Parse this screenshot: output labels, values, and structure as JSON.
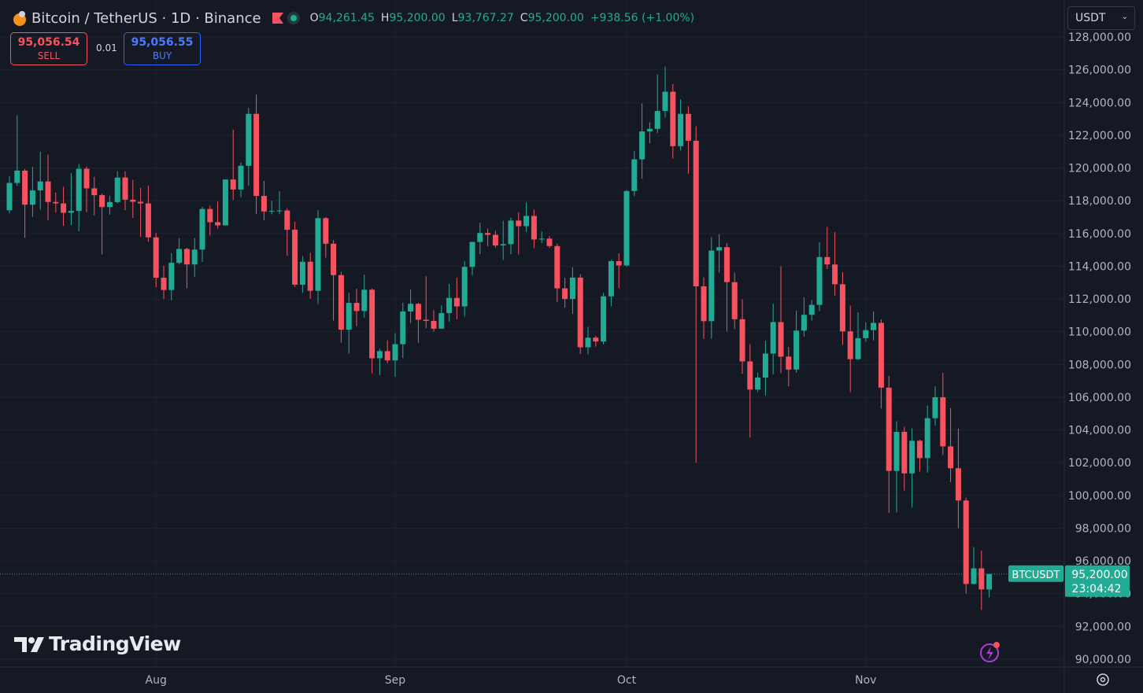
{
  "header": {
    "symbol": "Bitcoin / TetherUS · 1D · Binance",
    "ohlc": [
      {
        "key": "O",
        "value": "94,261.45"
      },
      {
        "key": "H",
        "value": "95,200.00"
      },
      {
        "key": "L",
        "value": "93,767.27"
      },
      {
        "key": "C",
        "value": "95,200.00"
      }
    ],
    "change": "+938.56 (+1.00%)"
  },
  "trade": {
    "sell_price": "95,056.54",
    "sell": "SELL",
    "quantity": "0.01",
    "buy_price": "95,056.55",
    "buy": "BUY"
  },
  "currency": "USDT",
  "logo": "TradingView",
  "chart_data": {
    "type": "candlestick",
    "categories": [
      null,
      null,
      null,
      null,
      null,
      null,
      null,
      null,
      null,
      null,
      null,
      null,
      null,
      null,
      null,
      null,
      null,
      null,
      null,
      "Aug",
      null,
      null,
      null,
      null,
      null,
      null,
      null,
      null,
      null,
      null,
      null,
      null,
      null,
      null,
      null,
      null,
      null,
      null,
      null,
      null,
      null,
      null,
      null,
      null,
      null,
      null,
      null,
      null,
      null,
      null,
      "Sep",
      null,
      null,
      null,
      null,
      null,
      null,
      null,
      null,
      null,
      null,
      null,
      null,
      null,
      null,
      null,
      null,
      null,
      null,
      null,
      null,
      null,
      null,
      null,
      null,
      null,
      null,
      null,
      null,
      null,
      "Oct",
      null,
      null,
      null,
      null,
      null,
      null,
      null,
      null,
      null,
      null,
      null,
      null,
      null,
      null,
      null,
      null,
      null,
      null,
      null,
      null,
      null,
      null,
      null,
      null,
      null,
      null,
      null,
      null,
      null,
      null,
      "Nov",
      null,
      null,
      null,
      null,
      null,
      null,
      null,
      null,
      null,
      null,
      null,
      null,
      null,
      null,
      null,
      null
    ],
    "open": [
      117420,
      119086,
      119841,
      117758,
      118630,
      119177,
      117924,
      117840,
      117265,
      117380,
      119954,
      118756,
      118340,
      117614,
      117919,
      119416,
      118062,
      117938,
      117837,
      115764,
      113297,
      112547,
      114208,
      115055,
      114108,
      115016,
      117496,
      116688,
      116498,
      119294,
      118686,
      120134,
      123307,
      118295,
      117342,
      117381,
      117405,
      116227,
      112872,
      114271,
      112500,
      116936,
      115374,
      113458,
      110124,
      111763,
      111262,
      112566,
      108377,
      108816,
      108246,
      109237,
      111240,
      111705,
      110730,
      110659,
      110187,
      111137,
      112065,
      111546,
      113960,
      115482,
      116029,
      115918,
      115268,
      115349,
      116788,
      116447,
      117073,
      115632,
      115685,
      115232,
      112650,
      111998,
      113307,
      109049,
      109635,
      109403,
      112163,
      114311,
      114048,
      118594,
      120529,
      122232,
      122391,
      123482,
      124658,
      121332,
      123306,
      121662,
      112774,
      110644,
      114958,
      115166,
      113028,
      110763,
      108186,
      106467,
      107198,
      108666,
      110588,
      108476,
      107688,
      110069,
      111033,
      111641,
      114559,
      114107,
      112898,
      110021,
      108322,
      109608,
      110098,
      110540,
      106583,
      101497,
      103885,
      101346,
      103340,
      102282,
      104719,
      105996,
      102997,
      101663,
      99692,
      94594,
      95549,
      94261.45
    ],
    "high": [
      119488,
      123218,
      119940,
      120063,
      120998,
      120820,
      118499,
      118856,
      119676,
      120247,
      120090,
      119450,
      118451,
      118297,
      119800,
      119800,
      119273,
      118792,
      118922,
      116052,
      114036,
      114800,
      115720,
      115127,
      115720,
      117631,
      117700,
      117944,
      119311,
      122335,
      120324,
      123667,
      124474,
      119216,
      117999,
      118575,
      117543,
      116725,
      114615,
      114821,
      117429,
      117000,
      115600,
      113657,
      112371,
      112625,
      113485,
      112646,
      108953,
      109480,
      109912,
      111771,
      112575,
      111765,
      113384,
      111307,
      111600,
      112924,
      113292,
      114313,
      115488,
      116665,
      116298,
      116165,
      116781,
      116964,
      117286,
      117900,
      117459,
      116121,
      115836,
      115379,
      113290,
      113940,
      113510,
      110300,
      109744,
      112375,
      114400,
      114792,
      118649,
      121022,
      123944,
      122800,
      125708,
      126199,
      125126,
      124197,
      123762,
      122550,
      113322,
      115770,
      115963,
      115409,
      113612,
      111982,
      109240,
      107499,
      109450,
      111705,
      114000,
      109074,
      111293,
      112104,
      111943,
      115466,
      116400,
      116086,
      113643,
      111592,
      111190,
      110564,
      111250,
      110750,
      107299,
      104534,
      104200,
      104096,
      103406,
      105495,
      106670,
      107500,
      105333,
      104085,
      99866,
      96846,
      96635,
      95200
    ],
    "low": [
      117224,
      118905,
      115736,
      117017,
      117453,
      116812,
      117277,
      116467,
      116515,
      116128,
      117301,
      117103,
      114723,
      117148,
      117840,
      117427,
      116950,
      115796,
      115500,
      112722,
      112002,
      111920,
      114107,
      112650,
      113356,
      114259,
      115879,
      116299,
      116498,
      118050,
      118207,
      118920,
      117180,
      116803,
      117175,
      117172,
      114640,
      112732,
      112380,
      112015,
      111684,
      114523,
      110680,
      109329,
      108666,
      110345,
      110862,
      107463,
      107350,
      108076,
      107255,
      108393,
      110528,
      109330,
      110206,
      110006,
      110180,
      110621,
      110766,
      110917,
      113430,
      114740,
      115223,
      115135,
      114384,
      114737,
      114720,
      116092,
      115100,
      115411,
      115117,
      111800,
      111463,
      111082,
      108631,
      108620,
      109093,
      109230,
      111560,
      112656,
      113981,
      118284,
      119344,
      121510,
      122136,
      123084,
      120574,
      121066,
      119651,
      102000,
      109561,
      109565,
      113616,
      110023,
      110164,
      107427,
      103528,
      106322,
      106103,
      107402,
      107473,
      106666,
      107500,
      109700,
      110672,
      111260,
      113830,
      112211,
      109200,
      106304,
      108275,
      109394,
      109471,
      105306,
      98944,
      98966,
      100300,
      99260,
      101454,
      101400,
      104265,
      102476,
      100813,
      98000,
      94012,
      94558,
      93005,
      93767.27
    ],
    "close": [
      119086,
      119841,
      117758,
      118630,
      119177,
      117924,
      117840,
      117265,
      117380,
      119954,
      118756,
      118340,
      117614,
      117919,
      119416,
      118062,
      117938,
      117837,
      115764,
      113297,
      112547,
      114208,
      115055,
      114108,
      115016,
      117496,
      116688,
      116498,
      119294,
      118686,
      120134,
      123307,
      118295,
      117342,
      117381,
      117405,
      116227,
      112872,
      114271,
      112500,
      116936,
      115374,
      113458,
      110124,
      111763,
      111262,
      112566,
      108377,
      108816,
      108246,
      109237,
      111240,
      111705,
      110730,
      110659,
      110187,
      111137,
      112065,
      111546,
      113960,
      115482,
      116029,
      115918,
      115268,
      115349,
      116788,
      116447,
      117073,
      115632,
      115685,
      115232,
      112650,
      111998,
      113307,
      109049,
      109635,
      109403,
      112163,
      114311,
      114048,
      118594,
      120529,
      122232,
      122391,
      123482,
      124658,
      121332,
      123306,
      121662,
      112774,
      110644,
      114958,
      115166,
      113028,
      110763,
      108186,
      106467,
      107198,
      108666,
      110588,
      108476,
      107688,
      110069,
      111033,
      111641,
      114559,
      114107,
      112898,
      110021,
      108322,
      109608,
      110098,
      110540,
      106583,
      101497,
      103885,
      101346,
      103340,
      102282,
      104719,
      105996,
      102997,
      101663,
      99692,
      94594,
      95549,
      94261.45,
      95200
    ],
    "up_color": "#22ab94",
    "down_color": "#f7525f",
    "ylim": [
      89520,
      130260
    ],
    "yticks": [
      {
        "value": 90000,
        "label": "90,000.00"
      },
      {
        "value": 92000,
        "label": "92,000.00"
      },
      {
        "value": 94000,
        "label": "94,000.00"
      },
      {
        "value": 96000,
        "label": "96,000.00"
      },
      {
        "value": 98000,
        "label": "98,000.00"
      },
      {
        "value": 100000,
        "label": "100,000.00"
      },
      {
        "value": 102000,
        "label": "102,000.00"
      },
      {
        "value": 104000,
        "label": "104,000.00"
      },
      {
        "value": 106000,
        "label": "106,000.00"
      },
      {
        "value": 108000,
        "label": "108,000.00"
      },
      {
        "value": 110000,
        "label": "110,000.00"
      },
      {
        "value": 112000,
        "label": "112,000.00"
      },
      {
        "value": 114000,
        "label": "114,000.00"
      },
      {
        "value": 116000,
        "label": "116,000.00"
      },
      {
        "value": 118000,
        "label": "118,000.00"
      },
      {
        "value": 120000,
        "label": "120,000.00"
      },
      {
        "value": 122000,
        "label": "122,000.00"
      },
      {
        "value": 124000,
        "label": "124,000.00"
      },
      {
        "value": 126000,
        "label": "126,000.00"
      },
      {
        "value": 128000,
        "label": "128,000.00"
      }
    ],
    "grid": true,
    "price_line": {
      "value": 95200,
      "label": "95,200.00",
      "name": "BTCUSDT",
      "countdown": "23:04:42"
    }
  }
}
